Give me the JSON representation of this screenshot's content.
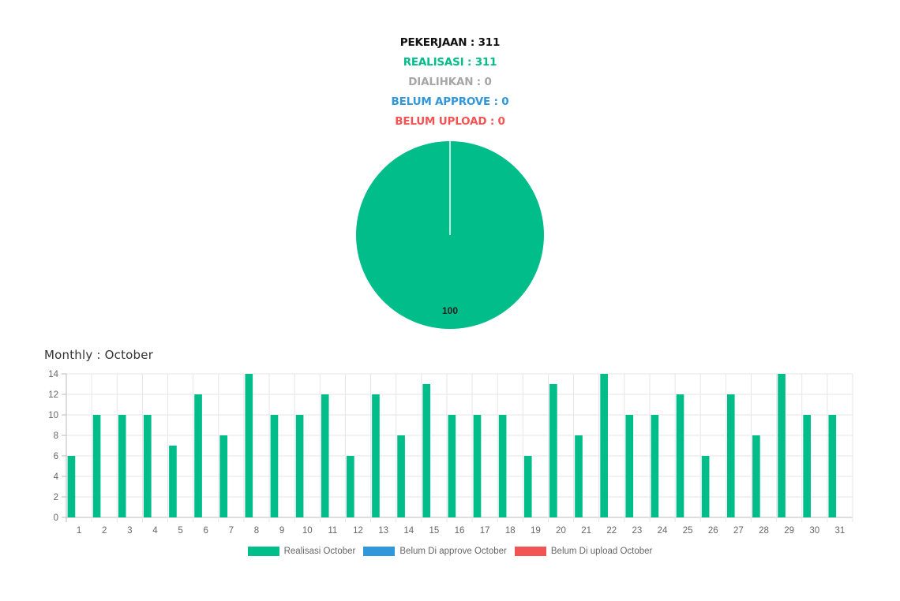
{
  "summary": {
    "pekerjaan": "PEKERJAAN : 311",
    "realisasi": "REALISASI : 311",
    "dialihkan": "DIALIHKAN : 0",
    "belum_approve": "BELUM APPROVE : 0",
    "belum_upload": "BELUM UPLOAD : 0"
  },
  "colors": {
    "pekerjaan": "#111111",
    "realisasi": "#00bd8a",
    "dialihkan": "#a6a6a6",
    "belum_approve": "#2f97da",
    "belum_upload": "#f25454",
    "grid": "#e6e6e6",
    "axis": "#999999",
    "tick": "#666666"
  },
  "monthly": {
    "title": "Monthly : October"
  },
  "chart_data": [
    {
      "type": "pie",
      "labels": [
        "Realisasi",
        "Dialihkan",
        "Belum Approve",
        "Belum Upload"
      ],
      "values": [
        100,
        0,
        0,
        0
      ],
      "data_labels": [
        "100"
      ],
      "colors": [
        "#00bd8a",
        "#a6a6a6",
        "#2f97da",
        "#f25454"
      ]
    },
    {
      "type": "bar",
      "categories": [
        "1",
        "2",
        "3",
        "4",
        "5",
        "6",
        "7",
        "8",
        "9",
        "10",
        "11",
        "12",
        "13",
        "14",
        "15",
        "16",
        "17",
        "18",
        "19",
        "20",
        "21",
        "22",
        "23",
        "24",
        "25",
        "26",
        "27",
        "28",
        "29",
        "30",
        "31"
      ],
      "series": [
        {
          "name": "Realisasi October",
          "color": "#00bd8a",
          "values": [
            6,
            10,
            10,
            10,
            7,
            12,
            8,
            14,
            10,
            10,
            12,
            6,
            12,
            8,
            13,
            10,
            10,
            10,
            6,
            13,
            8,
            14,
            10,
            10,
            12,
            6,
            12,
            8,
            14,
            10,
            10
          ]
        },
        {
          "name": "Belum Di approve October",
          "color": "#2f97da",
          "values": [
            0,
            0,
            0,
            0,
            0,
            0,
            0,
            0,
            0,
            0,
            0,
            0,
            0,
            0,
            0,
            0,
            0,
            0,
            0,
            0,
            0,
            0,
            0,
            0,
            0,
            0,
            0,
            0,
            0,
            0,
            0
          ]
        },
        {
          "name": "Belum Di upload October",
          "color": "#f25454",
          "values": [
            0,
            0,
            0,
            0,
            0,
            0,
            0,
            0,
            0,
            0,
            0,
            0,
            0,
            0,
            0,
            0,
            0,
            0,
            0,
            0,
            0,
            0,
            0,
            0,
            0,
            0,
            0,
            0,
            0,
            0,
            0
          ]
        }
      ],
      "ylim": [
        0,
        14
      ],
      "yticks": [
        "0",
        "2",
        "4",
        "6",
        "8",
        "10",
        "12",
        "14"
      ],
      "grid": true,
      "legend_position": "bottom"
    }
  ]
}
